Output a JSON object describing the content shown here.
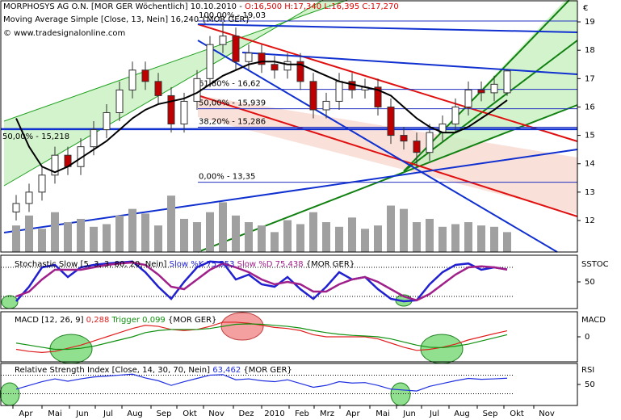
{
  "chart_data": [
    {
      "type": "candlestick",
      "title": "MORPHOSYS AG O.N. [MOR GER  Wöchentlich] 10.10.2010 -",
      "ohlc_label": "O:16,500 H:17,340 L:16,395 C:17,270",
      "subtitle": "Moving Average Simple [Close, 13, Nein] 16,240 {MOR GER}",
      "source": "© www.tradesignalonline.com",
      "currency": "€",
      "x_labels": [
        "Apr",
        "Mai",
        "Jun",
        "Jul",
        "Aug",
        "Sep",
        "Okt",
        "Nov",
        "Dez",
        "2010",
        "Feb",
        "Mrz",
        "Apr",
        "Mai",
        "Jun",
        "Jul",
        "Aug",
        "Sep",
        "Okt",
        "Nov"
      ],
      "open": [
        12.3,
        12.6,
        13.0,
        13.6,
        14.3,
        13.9,
        14.6,
        15.2,
        15.8,
        16.6,
        17.3,
        16.9,
        16.4,
        15.4,
        16.2,
        17.0,
        18.2,
        18.5,
        17.6,
        17.9,
        17.5,
        17.3,
        17.6,
        16.9,
        15.9,
        16.2,
        16.9,
        16.6,
        16.7,
        16.0,
        15.0,
        14.8,
        14.4,
        15.1,
        15.4,
        16.0,
        16.6,
        16.5,
        16.5
      ],
      "high": [
        12.9,
        13.3,
        13.9,
        14.6,
        14.6,
        14.9,
        15.5,
        16.1,
        16.9,
        17.6,
        17.6,
        17.2,
        16.7,
        16.5,
        17.3,
        18.5,
        19.0,
        18.8,
        18.2,
        18.2,
        17.8,
        17.9,
        17.9,
        17.2,
        16.5,
        17.2,
        17.2,
        17.0,
        17.0,
        16.3,
        15.3,
        15.1,
        15.4,
        15.7,
        16.3,
        16.9,
        16.9,
        17.1,
        17.34
      ],
      "low": [
        12.0,
        12.3,
        12.7,
        13.3,
        13.6,
        13.6,
        14.3,
        14.9,
        15.5,
        16.3,
        16.6,
        16.1,
        15.1,
        15.1,
        15.9,
        16.7,
        17.9,
        17.3,
        17.3,
        17.2,
        17.0,
        17.0,
        16.6,
        15.6,
        15.6,
        15.9,
        16.3,
        16.3,
        15.7,
        14.7,
        14.5,
        13.9,
        14.1,
        14.8,
        15.1,
        15.7,
        16.2,
        16.2,
        16.395
      ],
      "close": [
        12.6,
        13.0,
        13.6,
        14.3,
        13.9,
        14.6,
        15.2,
        15.8,
        16.6,
        17.3,
        16.9,
        16.4,
        15.4,
        16.2,
        17.0,
        18.2,
        18.5,
        17.6,
        17.9,
        17.5,
        17.3,
        17.6,
        16.9,
        15.9,
        16.2,
        16.9,
        16.6,
        16.7,
        16.0,
        15.0,
        14.8,
        14.4,
        15.1,
        15.4,
        16.0,
        16.6,
        16.5,
        16.8,
        17.27
      ],
      "ma_values": [
        15.6,
        14.6,
        13.9,
        13.7,
        13.9,
        14.2,
        14.5,
        14.8,
        15.2,
        15.6,
        15.9,
        16.1,
        16.2,
        16.3,
        16.5,
        16.8,
        17.1,
        17.3,
        17.5,
        17.6,
        17.6,
        17.5,
        17.5,
        17.3,
        17.1,
        16.9,
        16.8,
        16.7,
        16.6,
        16.4,
        16.0,
        15.6,
        15.3,
        15.1,
        15.1,
        15.3,
        15.6,
        15.9,
        16.24
      ],
      "ma_color": "#000000",
      "volume": [
        40,
        55,
        35,
        60,
        45,
        50,
        38,
        42,
        55,
        65,
        58,
        40,
        85,
        50,
        45,
        60,
        75,
        55,
        45,
        40,
        30,
        48,
        42,
        60,
        45,
        38,
        52,
        35,
        40,
        70,
        65,
        45,
        50,
        38,
        42,
        45,
        40,
        38,
        30
      ],
      "volume_color": "#a0a0a0",
      "vlim": [
        0,
        380
      ],
      "up_color": "#ffffff",
      "down_color": "#c00000",
      "ylim": [
        10.89,
        19.77
      ],
      "yticks": [
        12,
        13,
        14,
        15,
        16,
        17,
        18,
        19
      ],
      "annotations": [
        {
          "text": "100,00% - 19,03",
          "value": 19.03
        },
        {
          "text": "61,80% - 16,62",
          "value": 16.62
        },
        {
          "text": "50,00% - 15,939",
          "value": 15.939
        },
        {
          "text": "38,20% - 15,286",
          "value": 15.286
        },
        {
          "text": "0,00% - 13,35",
          "value": 13.35
        }
      ],
      "support": {
        "text": "50,00% - 15,218",
        "value": 15.218
      }
    },
    {
      "type": "line",
      "title": "Stochastic Slow [5, 3, 3, 80, 20, Nein]",
      "label": "{MOR GER}",
      "axis_label": "SSTOC",
      "series": [
        {
          "name": "Slow %K 75,553",
          "color": "#2020d0",
          "values": [
            10,
            40,
            80,
            85,
            60,
            80,
            85,
            88,
            90,
            92,
            70,
            40,
            15,
            50,
            80,
            92,
            90,
            55,
            65,
            45,
            40,
            60,
            35,
            15,
            40,
            70,
            55,
            60,
            35,
            15,
            10,
            12,
            45,
            70,
            85,
            88,
            75,
            80,
            75.553
          ]
        },
        {
          "name": "Slow %D 75,438",
          "color": "#a0208a",
          "values": [
            20,
            30,
            55,
            75,
            75,
            75,
            80,
            85,
            88,
            90,
            85,
            65,
            40,
            35,
            55,
            75,
            88,
            80,
            70,
            55,
            45,
            50,
            45,
            30,
            30,
            45,
            55,
            60,
            50,
            35,
            20,
            12,
            25,
            45,
            65,
            80,
            82,
            80,
            75.438
          ]
        }
      ],
      "ylim": [
        -5,
        105
      ],
      "yticks": [
        50
      ],
      "levels": [
        20,
        80
      ]
    },
    {
      "type": "line",
      "title": "MACD [12, 26, 9]",
      "label": "{MOR GER}",
      "axis_label": "MACD",
      "series": [
        {
          "name": "0,288",
          "color": "#e02020",
          "values": [
            -0.6,
            -0.7,
            -0.75,
            -0.7,
            -0.55,
            -0.4,
            -0.2,
            0,
            0.2,
            0.4,
            0.55,
            0.5,
            0.35,
            0.3,
            0.35,
            0.5,
            0.7,
            0.7,
            0.65,
            0.55,
            0.45,
            0.4,
            0.3,
            0.1,
            0,
            0,
            0,
            0,
            -0.1,
            -0.3,
            -0.5,
            -0.65,
            -0.6,
            -0.5,
            -0.35,
            -0.15,
            0,
            0.15,
            0.288
          ]
        },
        {
          "name": "Trigger 0,099",
          "color": "#109010",
          "values": [
            -0.3,
            -0.4,
            -0.5,
            -0.6,
            -0.6,
            -0.55,
            -0.45,
            -0.3,
            -0.15,
            0,
            0.2,
            0.3,
            0.35,
            0.35,
            0.35,
            0.4,
            0.5,
            0.6,
            0.62,
            0.6,
            0.55,
            0.5,
            0.42,
            0.3,
            0.2,
            0.12,
            0.07,
            0.04,
            0,
            -0.1,
            -0.25,
            -0.4,
            -0.5,
            -0.52,
            -0.45,
            -0.35,
            -0.2,
            -0.05,
            0.099
          ]
        }
      ],
      "ylim": [
        -1.2,
        1.2
      ],
      "yticks": [
        0
      ],
      "levels": []
    },
    {
      "type": "line",
      "title": "Relative Strength Index [Close, 14, 30, 70, Nein]",
      "label": "{MOR GER}",
      "axis_label": "RSI",
      "series": [
        {
          "name": "63,462",
          "color": "#2030e0",
          "values": [
            40,
            48,
            56,
            62,
            57,
            62,
            66,
            68,
            70,
            72,
            64,
            58,
            48,
            56,
            63,
            70,
            71,
            60,
            62,
            58,
            56,
            60,
            52,
            44,
            48,
            56,
            53,
            54,
            48,
            40,
            38,
            36,
            46,
            52,
            58,
            63,
            61,
            62,
            63.462
          ]
        }
      ],
      "ylim": [
        5,
        95
      ],
      "yticks": [
        50
      ],
      "levels": [
        30,
        70
      ]
    }
  ]
}
